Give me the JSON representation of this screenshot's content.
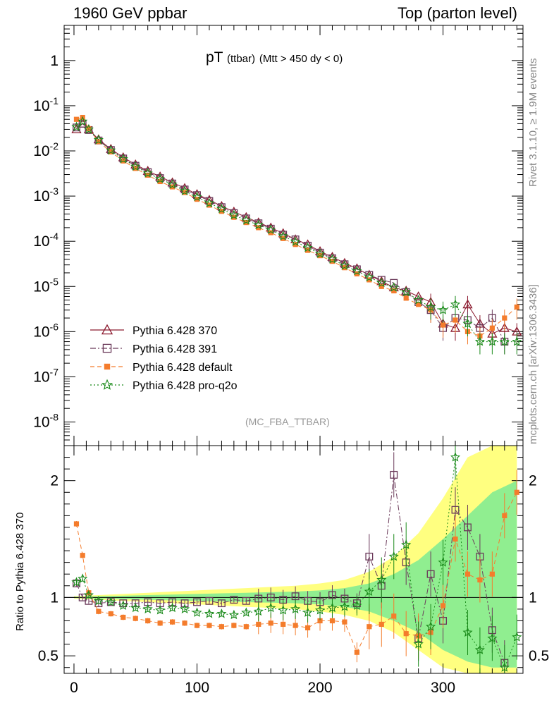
{
  "header": {
    "left": "1960 GeV ppbar",
    "right": "Top (parton level)"
  },
  "side_labels": {
    "rivet": "Rivet 3.1.10, ≥ 1.9M events",
    "mcplots": "mcplots.cern.ch [arXiv:1306.3436]"
  },
  "chart_data": [
    {
      "type": "scatter",
      "title": "pT",
      "title_suffix": "(ttbar)",
      "subtitle": "(Mtt > 450 dy < 0)",
      "watermark": "(MC_FBA_TTBAR)",
      "yscale": "log",
      "xlim": [
        -8,
        365
      ],
      "ylim": [
        3e-09,
        6
      ],
      "ytick_labels": [
        "1",
        "10-1",
        "10-2",
        "10-3",
        "10-4",
        "10-5",
        "10-6",
        "10-7",
        "10-8"
      ],
      "legend_position": "bottom-left",
      "series": [
        {
          "name": "Pythia 6.428 370",
          "color": "#8b1a2f",
          "marker": "triangle-open",
          "line": "solid",
          "x": [
            2,
            7,
            12,
            20,
            30,
            40,
            50,
            60,
            70,
            80,
            90,
            100,
            110,
            120,
            130,
            140,
            150,
            160,
            170,
            180,
            190,
            200,
            210,
            220,
            230,
            240,
            250,
            260,
            270,
            280,
            290,
            300,
            310,
            320,
            330,
            340,
            350,
            360
          ],
          "y": [
            0.03,
            0.04,
            0.03,
            0.018,
            0.011,
            0.0072,
            0.005,
            0.0036,
            0.0027,
            0.002,
            0.0015,
            0.0011,
            0.00082,
            0.0006,
            0.00045,
            0.00034,
            0.00026,
            0.0002,
            0.00015,
            0.00011,
            8.5e-05,
            6e-05,
            4.5e-05,
            3.3e-05,
            2.5e-05,
            1.8e-05,
            1.3e-05,
            9.5e-06,
            8e-06,
            6e-06,
            4.5e-06,
            1.5e-06,
            1.2e-06,
            4e-06,
            1.5e-06,
            9e-07,
            1.2e-06,
            1e-06
          ]
        },
        {
          "name": "Pythia 6.428 391",
          "color": "#6b3a5a",
          "marker": "square-open",
          "line": "dashdot",
          "x": [
            2,
            7,
            12,
            20,
            30,
            40,
            50,
            60,
            70,
            80,
            90,
            100,
            110,
            120,
            130,
            140,
            150,
            160,
            170,
            180,
            190,
            200,
            210,
            220,
            230,
            240,
            250,
            260,
            270,
            280,
            290,
            300,
            310,
            320,
            330,
            340,
            350
          ],
          "y": [
            0.033,
            0.04,
            0.029,
            0.017,
            0.0105,
            0.0068,
            0.0047,
            0.0034,
            0.0025,
            0.0019,
            0.0014,
            0.00105,
            0.00078,
            0.00057,
            0.00042,
            0.00032,
            0.00025,
            0.00019,
            0.00014,
            0.00011,
            8e-05,
            5.6e-05,
            4.2e-05,
            3.1e-05,
            2.4e-05,
            1.8e-05,
            1.4e-05,
            1.2e-05,
            7.5e-06,
            4.5e-06,
            3e-06,
            1.2e-06,
            2e-06,
            1.8e-06,
            1.2e-06,
            2e-06,
            6e-07
          ]
        },
        {
          "name": "Pythia 6.428 default",
          "color": "#f47c2c",
          "marker": "square-filled",
          "line": "dashed",
          "x": [
            2,
            7,
            12,
            20,
            30,
            40,
            50,
            60,
            70,
            80,
            90,
            100,
            110,
            120,
            130,
            140,
            150,
            160,
            170,
            180,
            190,
            200,
            210,
            220,
            230,
            240,
            250,
            260,
            270,
            280,
            290,
            300,
            310,
            320,
            330,
            340,
            350,
            360
          ],
          "y": [
            0.05,
            0.055,
            0.031,
            0.016,
            0.0095,
            0.006,
            0.0041,
            0.0029,
            0.0021,
            0.0016,
            0.0012,
            0.00085,
            0.00063,
            0.00046,
            0.00034,
            0.00026,
            0.0002,
            0.000155,
            0.000115,
            8.5e-05,
            6.3e-05,
            4.8e-05,
            3.6e-05,
            2.6e-05,
            1.9e-05,
            1.4e-05,
            1e-05,
            8e-06,
            5.5e-06,
            4e-06,
            3e-06,
            1.4e-06,
            1.8e-06,
            1e-06,
            8e-07,
            1.2e-06,
            2e-06,
            3.5e-06
          ]
        },
        {
          "name": "Pythia 6.428 pro-q2o",
          "color": "#1a8a1a",
          "marker": "star",
          "line": "dotted",
          "x": [
            2,
            7,
            12,
            20,
            30,
            40,
            50,
            60,
            70,
            80,
            90,
            100,
            110,
            120,
            130,
            140,
            150,
            160,
            170,
            180,
            190,
            200,
            210,
            220,
            230,
            240,
            250,
            260,
            270,
            280,
            290,
            300,
            310,
            320,
            330,
            340,
            350,
            360
          ],
          "y": [
            0.034,
            0.045,
            0.03,
            0.0175,
            0.0103,
            0.0066,
            0.0045,
            0.0032,
            0.0024,
            0.0018,
            0.0013,
            0.00096,
            0.0007,
            0.00052,
            0.00038,
            0.00029,
            0.00023,
            0.00018,
            0.00013,
            9.8e-05,
            7.2e-05,
            5.3e-05,
            4e-05,
            2.9e-05,
            2.2e-05,
            1.6e-05,
            1.2e-05,
            9.5e-06,
            7.5e-06,
            5e-06,
            3.5e-06,
            3e-06,
            4e-06,
            1.5e-06,
            6e-07,
            6e-07,
            6e-07,
            6e-07
          ]
        }
      ]
    },
    {
      "type": "scatter",
      "ylabel": "Ratio to Pythia 6.428 370",
      "xlim": [
        -8,
        365
      ],
      "ylim": [
        0.35,
        2.3
      ],
      "yticks": [
        0.5,
        1,
        2
      ],
      "xticks": [
        0,
        100,
        200,
        300
      ],
      "reference": 1,
      "band_yellow": {
        "x": [
          0,
          20,
          40,
          60,
          80,
          100,
          120,
          140,
          160,
          180,
          200,
          220,
          240,
          260,
          280,
          300,
          320,
          340,
          360
        ],
        "lo": [
          0.99,
          0.98,
          0.97,
          0.96,
          0.95,
          0.94,
          0.93,
          0.92,
          0.91,
          0.9,
          0.88,
          0.85,
          0.8,
          0.7,
          0.55,
          0.4,
          0.35,
          0.35,
          0.35
        ],
        "hi": [
          1.01,
          1.02,
          1.03,
          1.04,
          1.05,
          1.06,
          1.07,
          1.08,
          1.09,
          1.1,
          1.12,
          1.15,
          1.22,
          1.35,
          1.55,
          1.85,
          2.2,
          2.3,
          2.3
        ]
      },
      "band_green": {
        "x": [
          0,
          20,
          40,
          60,
          80,
          100,
          120,
          140,
          160,
          180,
          200,
          220,
          240,
          260,
          280,
          300,
          320,
          340,
          360
        ],
        "lo": [
          0.995,
          0.99,
          0.985,
          0.98,
          0.975,
          0.97,
          0.965,
          0.96,
          0.955,
          0.95,
          0.94,
          0.92,
          0.88,
          0.8,
          0.7,
          0.55,
          0.45,
          0.4,
          0.4
        ],
        "hi": [
          1.005,
          1.01,
          1.015,
          1.02,
          1.025,
          1.03,
          1.035,
          1.04,
          1.045,
          1.05,
          1.06,
          1.08,
          1.12,
          1.2,
          1.32,
          1.5,
          1.7,
          1.9,
          2.0
        ]
      },
      "series": [
        {
          "name": "Pythia 6.428 391",
          "color": "#6b3a5a",
          "marker": "square-open",
          "x": [
            2,
            7,
            12,
            20,
            30,
            40,
            50,
            60,
            70,
            80,
            90,
            100,
            110,
            120,
            130,
            140,
            150,
            160,
            170,
            180,
            190,
            200,
            210,
            220,
            230,
            240,
            250,
            260,
            270,
            280,
            290,
            300,
            310,
            320,
            330,
            340,
            350
          ],
          "y": [
            1.12,
            1.0,
            0.97,
            0.95,
            0.96,
            0.95,
            0.95,
            0.96,
            0.95,
            0.96,
            0.95,
            0.96,
            0.97,
            0.95,
            0.98,
            0.97,
            0.99,
            1.0,
            0.98,
            1.01,
            0.97,
            0.96,
            1.02,
            0.99,
            0.95,
            1.35,
            1.1,
            2.05,
            1.3,
            0.65,
            1.2,
            0.8,
            1.75,
            1.6,
            1.35,
            0.72,
            0.44
          ]
        },
        {
          "name": "Pythia 6.428 default",
          "color": "#f47c2c",
          "marker": "square-filled",
          "x": [
            2,
            7,
            12,
            20,
            30,
            40,
            50,
            60,
            70,
            80,
            90,
            100,
            110,
            120,
            130,
            140,
            150,
            160,
            170,
            180,
            190,
            200,
            210,
            220,
            230,
            240,
            250,
            260,
            270,
            280,
            290,
            300,
            310,
            320,
            330,
            340,
            350,
            360
          ],
          "y": [
            1.63,
            1.36,
            1.04,
            0.88,
            0.86,
            0.83,
            0.82,
            0.8,
            0.78,
            0.79,
            0.78,
            0.76,
            0.76,
            0.75,
            0.76,
            0.75,
            0.77,
            0.78,
            0.77,
            0.76,
            0.74,
            0.8,
            0.8,
            0.79,
            0.53,
            0.75,
            0.77,
            0.84,
            0.69,
            0.67,
            0.7,
            0.93,
            1.5,
            1.2,
            1.15,
            1.2,
            1.7,
            1.9
          ]
        },
        {
          "name": "Pythia 6.428 pro-q2o",
          "color": "#1a8a1a",
          "marker": "star",
          "x": [
            2,
            7,
            12,
            20,
            30,
            40,
            50,
            60,
            70,
            80,
            90,
            100,
            110,
            120,
            130,
            140,
            150,
            160,
            170,
            180,
            190,
            200,
            210,
            220,
            230,
            240,
            250,
            260,
            270,
            280,
            290,
            300,
            310,
            320,
            330,
            340,
            350,
            360
          ],
          "y": [
            1.13,
            1.16,
            1.02,
            0.97,
            0.96,
            0.93,
            0.91,
            0.9,
            0.89,
            0.91,
            0.9,
            0.87,
            0.86,
            0.86,
            0.85,
            0.87,
            0.88,
            0.91,
            0.89,
            0.9,
            0.87,
            0.89,
            0.91,
            0.92,
            0.93,
            1.05,
            1.15,
            1.35,
            1.45,
            0.6,
            0.75,
            1.3,
            2.2,
            0.7,
            0.55,
            0.65,
            0.4,
            0.66
          ]
        }
      ]
    }
  ]
}
